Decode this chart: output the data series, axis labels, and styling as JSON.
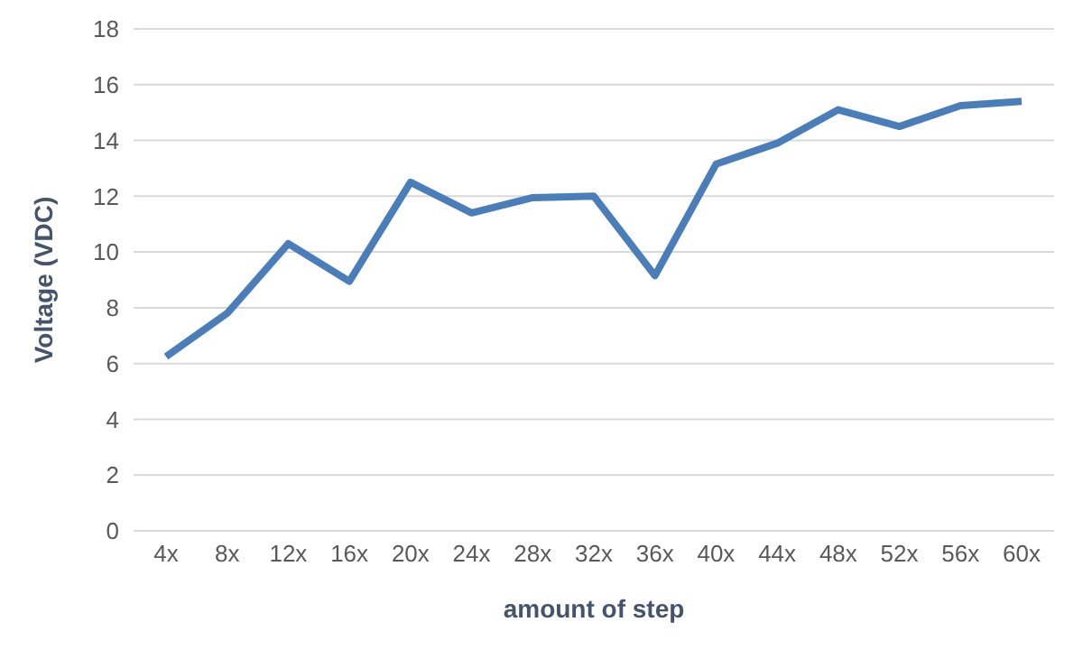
{
  "chart_data": {
    "type": "line",
    "xlabel": "amount of step",
    "ylabel": "Voltage (VDC)",
    "categories": [
      "4x",
      "8x",
      "12x",
      "16x",
      "20x",
      "24x",
      "28x",
      "32x",
      "36x",
      "40x",
      "44x",
      "48x",
      "52x",
      "56x",
      "60x"
    ],
    "series": [
      {
        "color": "#4a7ebb",
        "values": [
          6.25,
          7.8,
          10.3,
          8.95,
          12.5,
          11.4,
          11.95,
          12.0,
          9.15,
          13.15,
          13.9,
          15.1,
          14.5,
          15.25,
          15.4
        ]
      }
    ],
    "ylim": [
      0,
      18
    ],
    "yticks": [
      0,
      2,
      4,
      6,
      8,
      10,
      12,
      14,
      16,
      18
    ],
    "grid": "y",
    "legend": false,
    "marker": "none",
    "line_style": "solid"
  }
}
